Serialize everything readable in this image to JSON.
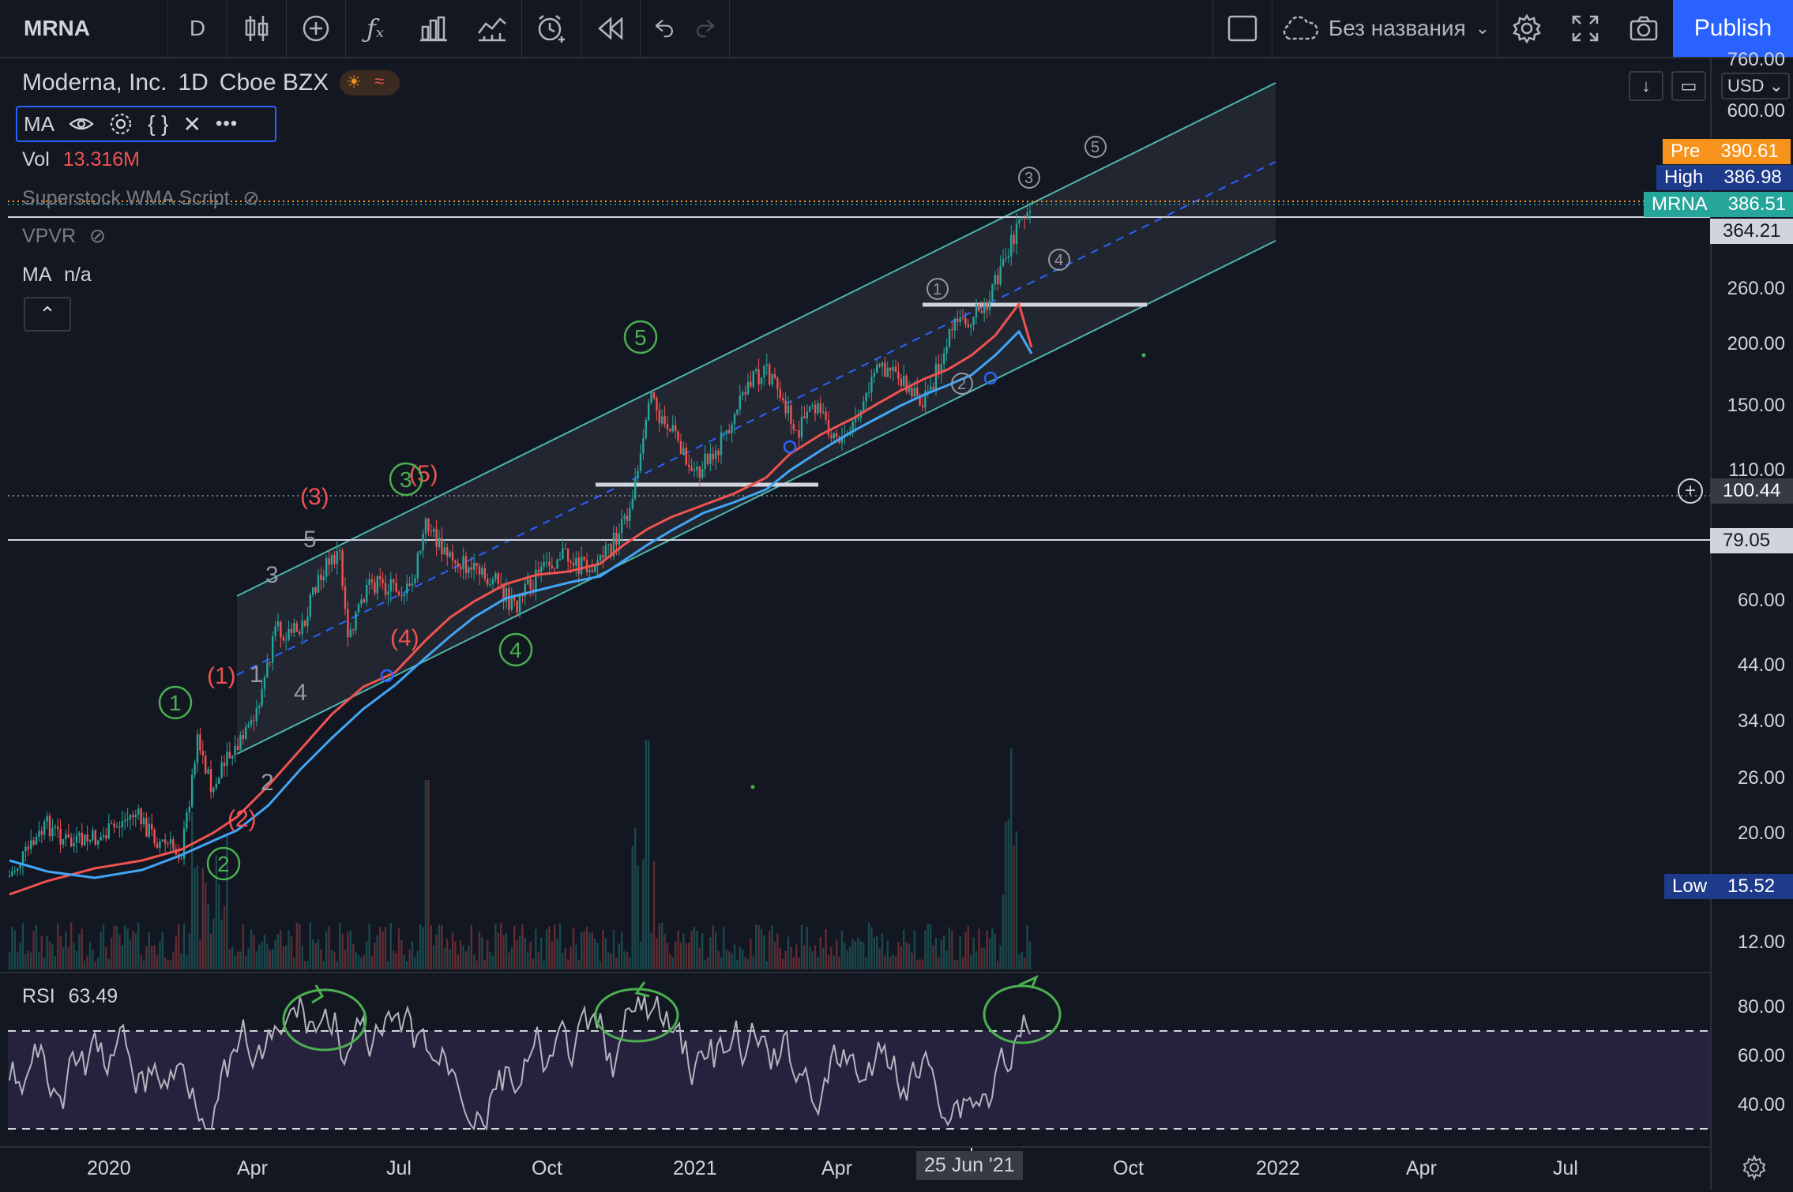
{
  "toolbar": {
    "symbol": "MRNA",
    "interval": "D",
    "title_placeholder": "Без названия",
    "publish_label": "Publish"
  },
  "legend": {
    "title": "Moderna, Inc.",
    "interval": "1D",
    "exchange": "Cboe BZX",
    "ma_label": "MA",
    "vol_label": "Vol",
    "vol_value": "13.316M",
    "script_name": "Superstock WMA Script",
    "vpvr_label": "VPVR",
    "ma2_label": "MA",
    "ma2_value": "n/a"
  },
  "currency": "USD",
  "price_axis": {
    "ticks": [
      "760.00",
      "600.00",
      "260.00",
      "200.00",
      "150.00",
      "110.00",
      "60.00",
      "44.00",
      "34.00",
      "26.00",
      "20.00",
      "12.00"
    ],
    "rsi_ticks": [
      "80.00",
      "60.00",
      "40.00"
    ]
  },
  "tags": {
    "pre": {
      "name": "Pre",
      "value": "390.61",
      "color": "#f7931a"
    },
    "high": {
      "name": "High",
      "value": "386.98",
      "color": "#1e3a8a"
    },
    "last": {
      "name": "MRNA",
      "value": "386.51",
      "color": "#26a69a"
    },
    "h1": {
      "value": "364.21"
    },
    "crosshair": {
      "value": "100.44"
    },
    "h2": {
      "value": "79.05"
    },
    "low": {
      "name": "Low",
      "value": "15.52",
      "color": "#1e3a8a"
    }
  },
  "time_axis": {
    "labels": [
      "2020",
      "Apr",
      "Jul",
      "Oct",
      "2021",
      "Apr",
      "25 Jun '21",
      "Oct",
      "2022",
      "Apr",
      "Jul"
    ]
  },
  "rsi": {
    "label": "RSI",
    "value": "63.49"
  },
  "annotations": {
    "red": [
      "(1)",
      "(2)",
      "(3)",
      "(4)",
      "(5)"
    ],
    "gray": [
      "1",
      "2",
      "3",
      "4",
      "5"
    ],
    "green": [
      "1",
      "2",
      "3",
      "4",
      "5"
    ],
    "circled_small": [
      "1",
      "2",
      "3",
      "4",
      "5"
    ]
  },
  "colors": {
    "background": "#131722",
    "up": "#26a69a",
    "down": "#ef5350",
    "channel": "#4db6ac",
    "ma_red": "#ef5350",
    "ma_blue": "#42a5f5",
    "accent": "#2962ff"
  }
}
